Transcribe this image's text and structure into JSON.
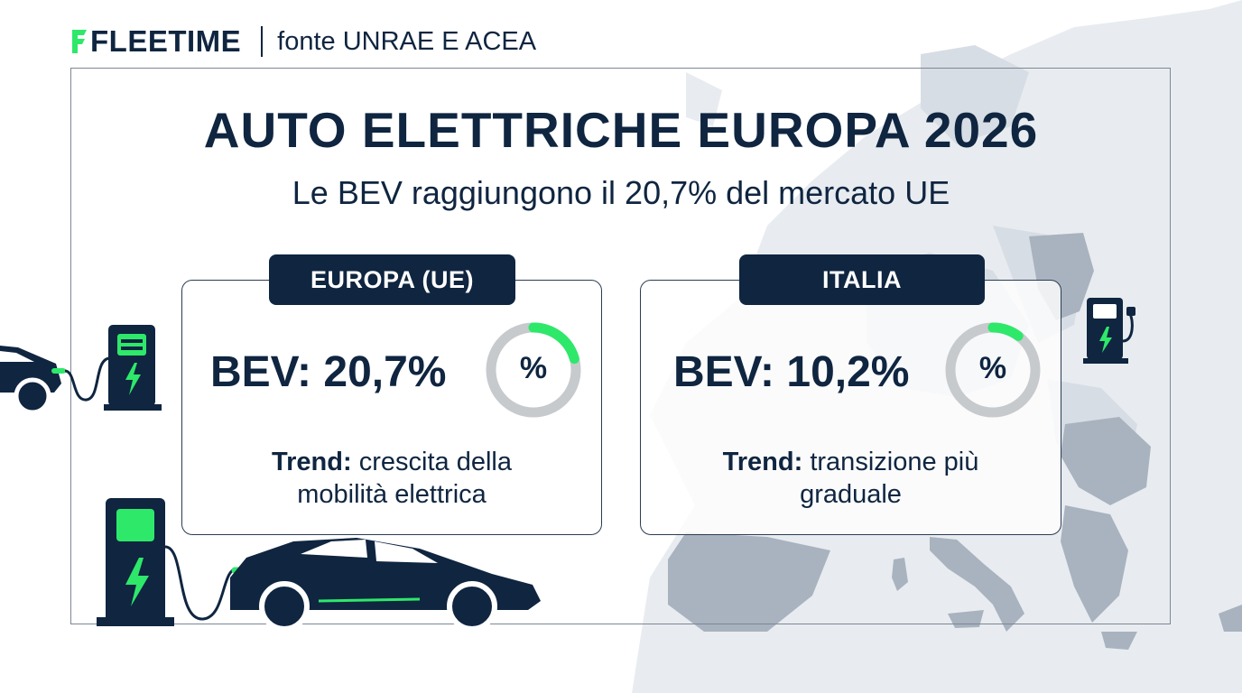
{
  "brand": {
    "logo_text": "FLEETIME",
    "source": "fonte UNRAE E ACEA"
  },
  "header": {
    "title": "AUTO ELETTRICHE EUROPA 2026",
    "subtitle": "Le BEV raggiungono il 20,7% del mercato UE"
  },
  "cards": [
    {
      "tag": "EUROPA (UE)",
      "bev_label": "BEV: 20,7%",
      "share_percent": 20.7,
      "donut_label": "%",
      "trend_label": "Trend:",
      "trend_text_1": "crescita della",
      "trend_text_2": "mobilità elettrica"
    },
    {
      "tag": "ITALIA",
      "bev_label": "BEV: 10,2%",
      "share_percent": 10.2,
      "donut_label": "%",
      "trend_label": "Trend:",
      "trend_text_1": "transizione più",
      "trend_text_2": "graduale"
    }
  ],
  "colors": {
    "navy": "#0f2540",
    "accent_green": "#2ee86a",
    "ring_gray": "#c7cacd",
    "map_gray": "#aab4c0"
  },
  "icons": [
    "fleetime-logo-icon",
    "electric-car-icon",
    "charging-station-icon",
    "bolt-icon",
    "map-europe"
  ]
}
